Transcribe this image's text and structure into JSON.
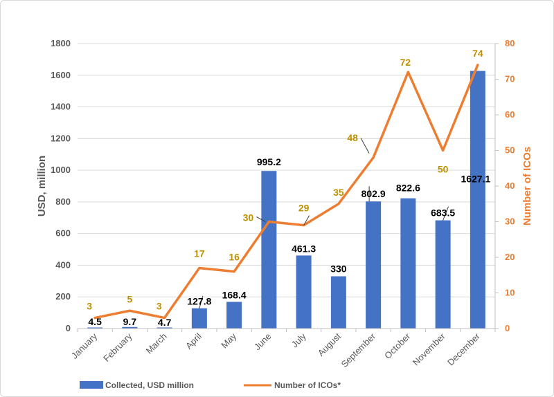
{
  "chart_data": {
    "type": "bar",
    "categories": [
      "January",
      "February",
      "March",
      "April",
      "May",
      "June",
      "July",
      "August",
      "September",
      "October",
      "November",
      "December"
    ],
    "series": [
      {
        "name": "Collected, USD million",
        "type": "bar",
        "axis": "left",
        "color": "#4472c4",
        "values": [
          4.5,
          9.7,
          4.7,
          127.8,
          168.4,
          995.2,
          461.3,
          330,
          802.9,
          822.6,
          683.5,
          1627.1
        ],
        "labels": [
          "4.5",
          "9.7",
          "4.7",
          "127.8",
          "168.4",
          "995.2",
          "461.3",
          "330",
          "802.9",
          "822.6",
          "683.5",
          "1627.1"
        ]
      },
      {
        "name": "Number of ICOs*",
        "type": "line",
        "axis": "right",
        "color": "#ed7d31",
        "values": [
          3,
          5,
          3,
          17,
          16,
          30,
          29,
          35,
          48,
          72,
          50,
          74
        ],
        "labels": [
          "3",
          "5",
          "3",
          "17",
          "16",
          "30",
          "29",
          "35",
          "48",
          "72",
          "50",
          "74"
        ]
      }
    ],
    "ylabel": "USD, million",
    "y2label": "Number of ICOs",
    "ylim": [
      0,
      1800
    ],
    "yticks": [
      "0",
      "200",
      "400",
      "600",
      "800",
      "1000",
      "1200",
      "1400",
      "1600",
      "1800"
    ],
    "y2lim": [
      0,
      80
    ],
    "y2ticks": [
      "0",
      "10",
      "20",
      "30",
      "40",
      "50",
      "60",
      "70",
      "80"
    ],
    "grid": true,
    "legend": "bottom",
    "label_color": "#bf9000",
    "axis2_color": "#ed7d31"
  }
}
